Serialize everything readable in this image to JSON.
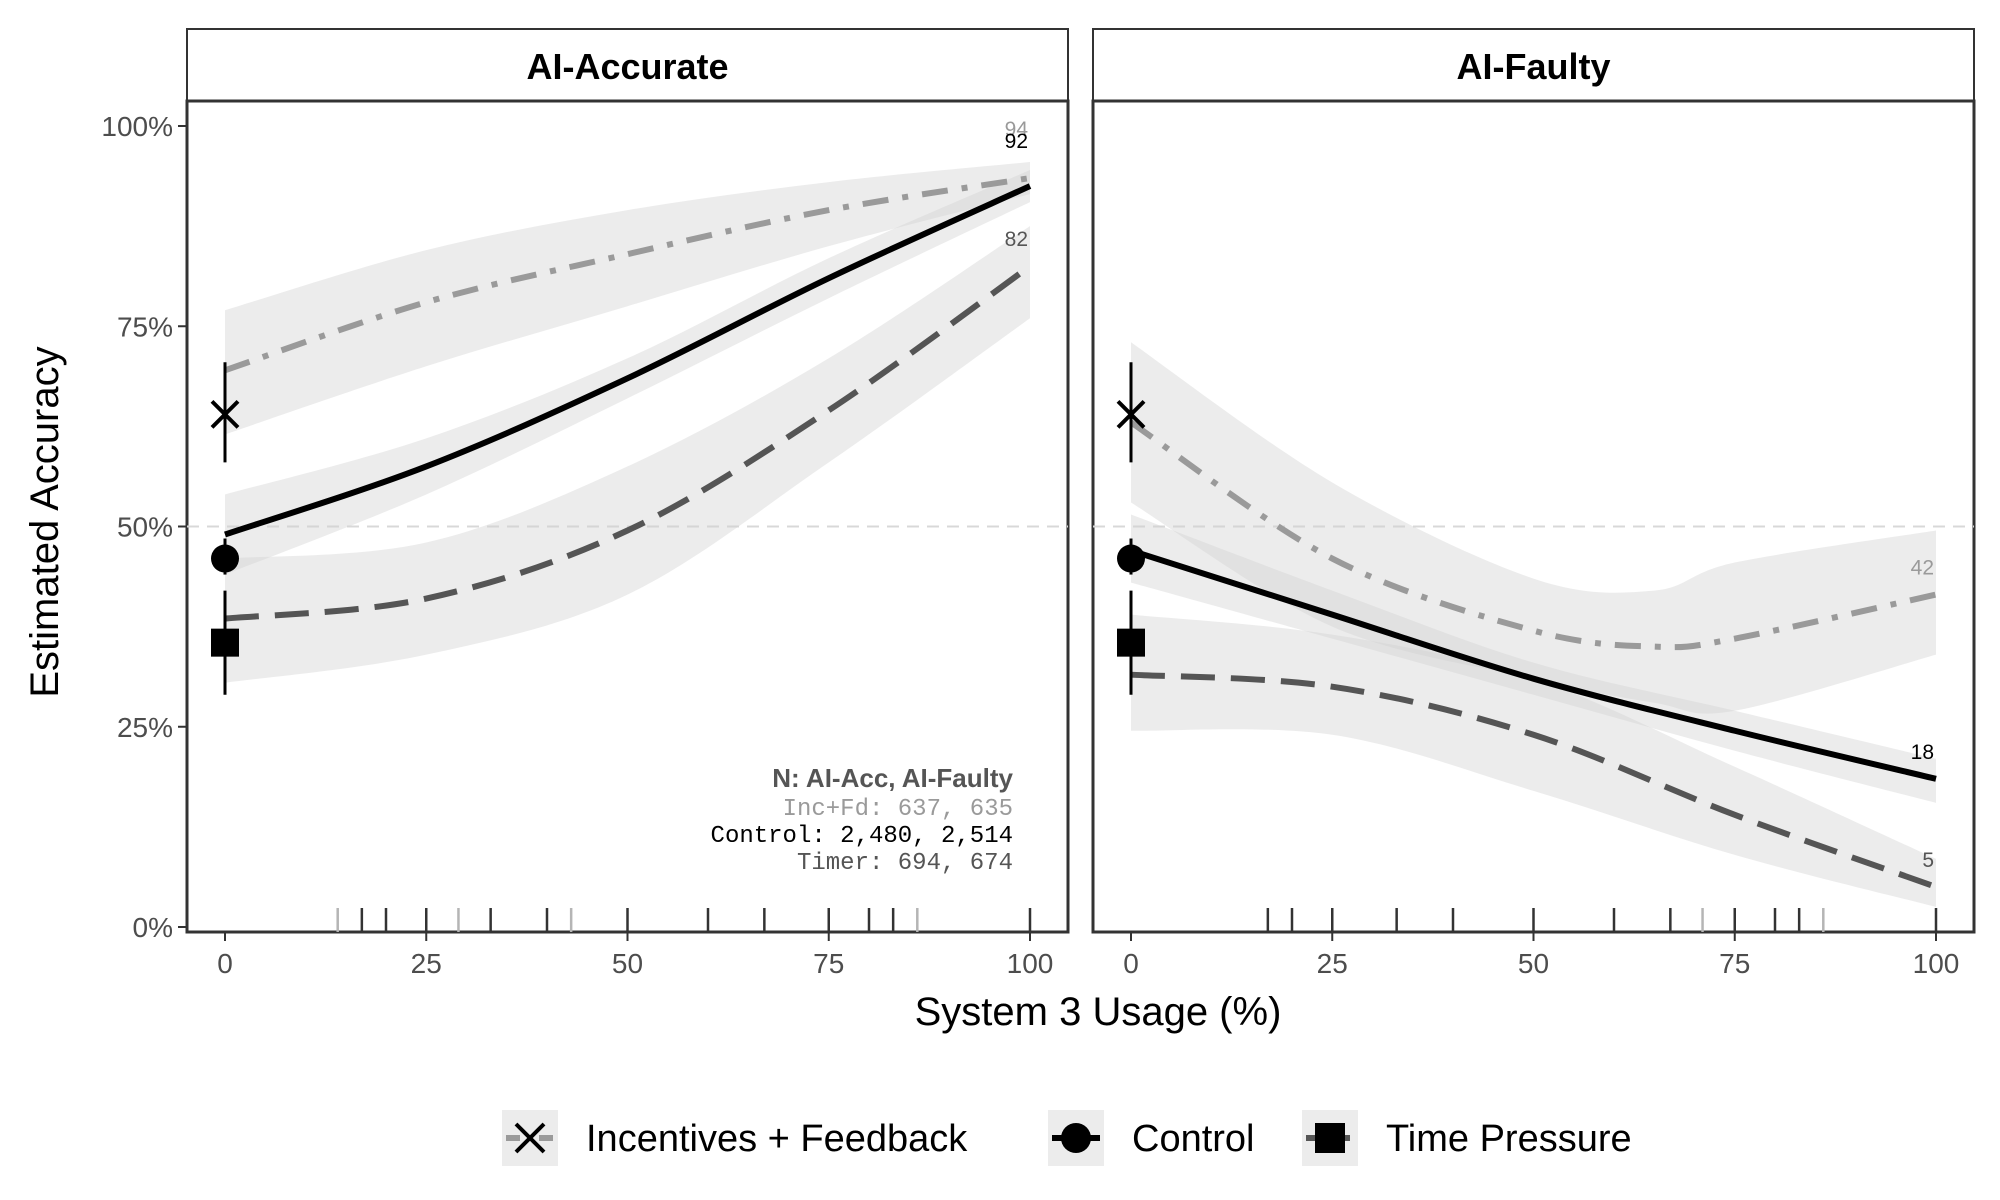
{
  "chart_data": {
    "type": "line",
    "ylabel": "Estimated Accuracy",
    "xlabel": "System 3 Usage (%)",
    "xlim": [
      0,
      100
    ],
    "ylim": [
      0,
      100
    ],
    "x_ticks": [
      "0",
      "25",
      "50",
      "75",
      "100"
    ],
    "y_ticks": [
      "0%",
      "25%",
      "50%",
      "75%",
      "100%"
    ],
    "reference_line_y": 50,
    "grid": false,
    "legend_position": "bottom",
    "colors": {
      "incentives": "#9a9a9a",
      "control": "#000000",
      "timer": "#555555",
      "ribbon": "#d2d2d2"
    },
    "legend": [
      {
        "key": "incentives",
        "label": "Incentives + Feedback",
        "marker": "x-icon",
        "dash": "dashdot"
      },
      {
        "key": "control",
        "label": "Control",
        "marker": "circle-icon",
        "dash": "solid"
      },
      {
        "key": "timer",
        "label": "Time Pressure",
        "marker": "square-icon",
        "dash": "dashed"
      }
    ],
    "panels": [
      {
        "title": "AI-Accurate",
        "series": [
          {
            "key": "incentives",
            "x": [
              0,
              25,
              50,
              75,
              100
            ],
            "y": [
              69.5,
              78,
              84,
              89.5,
              93.5
            ],
            "lower": [
              61.5,
              70,
              77.5,
              85,
              91.5
            ],
            "upper": [
              77,
              84.5,
              89.5,
              93,
              95.5
            ],
            "end_label": "94"
          },
          {
            "key": "control",
            "x": [
              0,
              25,
              50,
              75,
              100
            ],
            "y": [
              49,
              57.5,
              68.5,
              81,
              92.5
            ],
            "lower": [
              44,
              54,
              66,
              78.5,
              90.5
            ],
            "upper": [
              54,
              61,
              71,
              83.5,
              94.5
            ],
            "end_label": "92"
          },
          {
            "key": "timer",
            "x": [
              0,
              25,
              50,
              75,
              100
            ],
            "y": [
              38.5,
              41,
              49.5,
              64.5,
              82.5
            ],
            "lower": [
              30.5,
              34,
              41.5,
              58,
              76
            ],
            "upper": [
              46,
              48,
              57.5,
              71,
              87.5
            ],
            "end_label": "82"
          }
        ],
        "baseline_points": [
          {
            "key": "incentives",
            "x": 0,
            "y": 64,
            "lower": 58,
            "upper": 70.5
          },
          {
            "key": "control",
            "x": 0,
            "y": 46,
            "lower": 44,
            "upper": 48.5
          },
          {
            "key": "timer",
            "x": 0,
            "y": 35.5,
            "lower": 29,
            "upper": 42
          }
        ],
        "rug_x": [
          14,
          17,
          20,
          25,
          29,
          33,
          40,
          43,
          50,
          60,
          67,
          75,
          80,
          83,
          86,
          100
        ],
        "n_table": {
          "header": "N:  AI-Acc, AI-Faulty",
          "rows": [
            {
              "key": "incentives",
              "text": "Inc+Fd:   637,    635"
            },
            {
              "key": "control",
              "text": "Control: 2,480,  2,514"
            },
            {
              "key": "timer",
              "text": "Timer:   694,    674"
            }
          ]
        }
      },
      {
        "title": "AI-Faulty",
        "series": [
          {
            "key": "incentives",
            "x": [
              0,
              25,
              50,
              65,
              75,
              100
            ],
            "y": [
              63,
              46,
              37,
              35,
              36,
              41.5
            ],
            "lower": [
              53,
              37.5,
              31,
              28,
              27,
              34
            ],
            "upper": [
              73,
              55.5,
              43.5,
              42,
              45.5,
              49.5
            ],
            "end_label": "42"
          },
          {
            "key": "control",
            "x": [
              0,
              25,
              50,
              75,
              100
            ],
            "y": [
              47,
              39,
              31,
              24.5,
              18.5
            ],
            "lower": [
              43,
              36,
              29,
              22,
              15.5
            ],
            "upper": [
              51.5,
              42,
              33,
              27,
              21
            ],
            "end_label": "18"
          },
          {
            "key": "timer",
            "x": [
              0,
              25,
              50,
              75,
              100
            ],
            "y": [
              31.5,
              30,
              24,
              14,
              5
            ],
            "lower": [
              24.5,
              24,
              17,
              9,
              2.5
            ],
            "upper": [
              39,
              36.5,
              31,
              20,
              8.5
            ],
            "end_label": "5"
          }
        ],
        "baseline_points": [
          {
            "key": "incentives",
            "x": 0,
            "y": 64,
            "lower": 58,
            "upper": 70.5
          },
          {
            "key": "control",
            "x": 0,
            "y": 46,
            "lower": 44,
            "upper": 48.5
          },
          {
            "key": "timer",
            "x": 0,
            "y": 35.5,
            "lower": 29,
            "upper": 42
          }
        ],
        "rug_x": [
          17,
          20,
          25,
          33,
          40,
          50,
          60,
          67,
          71,
          75,
          80,
          83,
          86,
          100
        ]
      }
    ]
  }
}
